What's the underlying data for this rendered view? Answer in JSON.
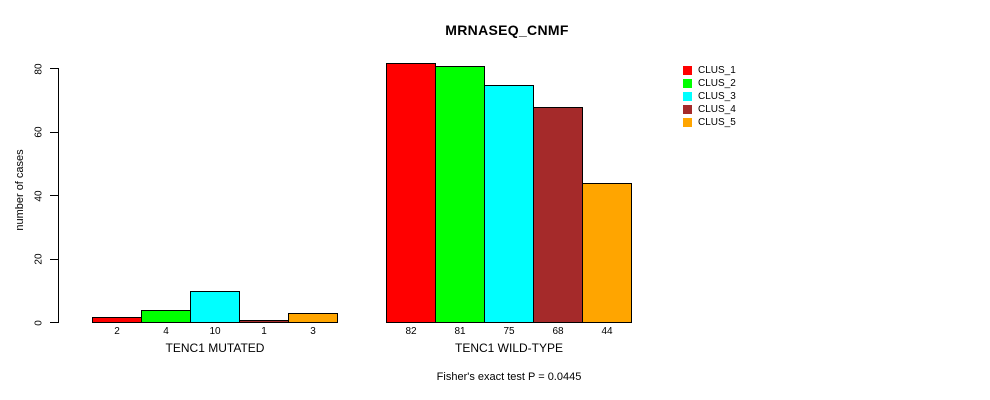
{
  "chart_data": {
    "type": "bar",
    "title": "MRNASEQ_CNMF",
    "xlabel": "",
    "ylabel": "number of cases",
    "ylim": [
      0,
      80
    ],
    "yticks": [
      0,
      20,
      40,
      60,
      80
    ],
    "grid": false,
    "legend_position": "right",
    "series": [
      {
        "name": "CLUS_1",
        "color": "#FF0000"
      },
      {
        "name": "CLUS_2",
        "color": "#00FF00"
      },
      {
        "name": "CLUS_3",
        "color": "#00FFFF"
      },
      {
        "name": "CLUS_4",
        "color": "#A52A2A"
      },
      {
        "name": "CLUS_5",
        "color": "#FFA500"
      }
    ],
    "groups": [
      {
        "label": "TENC1 MUTATED",
        "values": [
          2,
          4,
          10,
          1,
          3
        ]
      },
      {
        "label": "TENC1 WILD-TYPE",
        "values": [
          82,
          81,
          75,
          68,
          44
        ]
      }
    ],
    "bar_value_labels_shown": true,
    "annotation": "Fisher's exact test P = 0.0445"
  }
}
